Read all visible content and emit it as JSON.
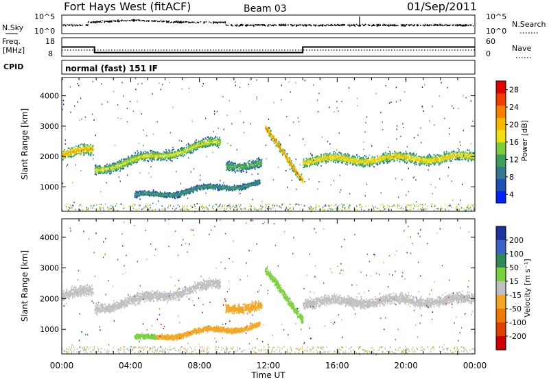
{
  "header": {
    "title": "Fort Hays West (fitACF)",
    "beam": "Beam 03",
    "date": "01/Sep/2011"
  },
  "panels": {
    "nsky": {
      "left_label": "N.Sky",
      "left_ticks": [
        "10^5",
        "10^0"
      ],
      "right_label": "N.Search",
      "right_ticks": [
        "10^5",
        "10^0"
      ]
    },
    "freq": {
      "left_label_1": "Freq.",
      "left_label_2": "[MHz]",
      "left_ticks": [
        "18",
        "8"
      ],
      "right_label": "Nave",
      "right_ticks": [
        "60",
        "0"
      ]
    },
    "cpid": {
      "label": "CPID",
      "text": "normal (fast) 151 IF"
    }
  },
  "colorbars": {
    "power": {
      "label": "Power [dB]",
      "ticks": [
        "4",
        "8",
        "12",
        "16",
        "20",
        "24",
        "28"
      ],
      "colors": [
        "#0020ff",
        "#1e50b4",
        "#347a8c",
        "#3aa05a",
        "#7ccd3c",
        "#f0e010",
        "#f8b800",
        "#f88000",
        "#f04000",
        "#e00000"
      ]
    },
    "velocity": {
      "label": "Velocity [m s⁻¹]",
      "ticks": [
        "200",
        "100",
        "50",
        "15",
        "-15",
        "-50",
        "-100",
        "-200"
      ],
      "colors": [
        "#1e32a0",
        "#3c64c8",
        "#2e8b57",
        "#7cd23c",
        "#c0c0c0",
        "#f5a623",
        "#f07800",
        "#e04000",
        "#d00000"
      ]
    }
  },
  "chart_data": [
    {
      "type": "heatmap",
      "name": "Power",
      "ylabel": "Slant Range [km]",
      "xlim": [
        0,
        24
      ],
      "ylim": [
        200,
        4600
      ],
      "y_ticks": [
        1000,
        2000,
        3000,
        4000
      ],
      "x_ticks": [
        "00:00",
        "04:00",
        "08:00",
        "12:00",
        "16:00",
        "20:00",
        "00:00"
      ],
      "colorbar_range_dB": [
        2,
        30
      ],
      "bands": [
        {
          "t_start": 0.0,
          "t_end": 1.8,
          "range_center": [
            2050,
            2250
          ],
          "width_km": 450,
          "power_dB": 22
        },
        {
          "t_start": 1.9,
          "t_end": 9.2,
          "range_center": [
            1600,
            2500
          ],
          "width_km": 400,
          "power_dB": 18
        },
        {
          "t_start": 4.2,
          "t_end": 11.5,
          "range_center": [
            700,
            1150
          ],
          "width_km": 220,
          "power_dB": 12
        },
        {
          "t_start": 9.5,
          "t_end": 11.6,
          "range_center": [
            1750,
            1750
          ],
          "width_km": 380,
          "power_dB": 14
        },
        {
          "t_start": 11.8,
          "t_end": 14.0,
          "range_center": [
            2900,
            1300
          ],
          "width_km": 350,
          "power_dB": 24
        },
        {
          "t_start": 14.0,
          "t_end": 24.0,
          "range_center": [
            1900,
            2000
          ],
          "width_km": 420,
          "power_dB": 20
        }
      ]
    },
    {
      "type": "heatmap",
      "name": "Velocity",
      "ylabel": "Slant Range [km]",
      "xlabel": "Time UT",
      "xlim": [
        0,
        24
      ],
      "ylim": [
        200,
        4600
      ],
      "y_ticks": [
        1000,
        2000,
        3000,
        4000
      ],
      "x_ticks": [
        "00:00",
        "04:00",
        "08:00",
        "12:00",
        "16:00",
        "20:00",
        "00:00"
      ],
      "colorbar_range_ms": [
        -200,
        200
      ],
      "bands": [
        {
          "t_start": 0.0,
          "t_end": 1.8,
          "range_center": [
            2100,
            2250
          ],
          "width_km": 450,
          "velocity": 0
        },
        {
          "t_start": 1.9,
          "t_end": 9.2,
          "range_center": [
            1700,
            2500
          ],
          "width_km": 400,
          "velocity": 0
        },
        {
          "t_start": 4.2,
          "t_end": 5.5,
          "range_center": [
            700,
            750
          ],
          "width_km": 200,
          "velocity": 30
        },
        {
          "t_start": 5.5,
          "t_end": 11.5,
          "range_center": [
            780,
            1150
          ],
          "width_km": 220,
          "velocity": -40
        },
        {
          "t_start": 9.5,
          "t_end": 11.6,
          "range_center": [
            1750,
            1750
          ],
          "width_km": 380,
          "velocity": -40
        },
        {
          "t_start": 11.8,
          "t_end": 14.0,
          "range_center": [
            2900,
            1400
          ],
          "width_km": 350,
          "velocity": 40
        },
        {
          "t_start": 14.0,
          "t_end": 24.0,
          "range_center": [
            1900,
            2000
          ],
          "width_km": 420,
          "velocity": 0
        }
      ]
    },
    {
      "type": "line",
      "name": "Frequency",
      "x": [
        0,
        1.9,
        1.9,
        14.0,
        14.0,
        24
      ],
      "values": [
        13,
        13,
        10,
        10,
        13,
        13
      ],
      "ylim": [
        8,
        18
      ]
    },
    {
      "type": "line",
      "name": "Nave",
      "x": [
        0,
        1.9,
        1.9,
        14.0,
        14.0,
        24
      ],
      "values": [
        20,
        20,
        20,
        20,
        20,
        20
      ],
      "ylim": [
        0,
        60
      ]
    }
  ]
}
